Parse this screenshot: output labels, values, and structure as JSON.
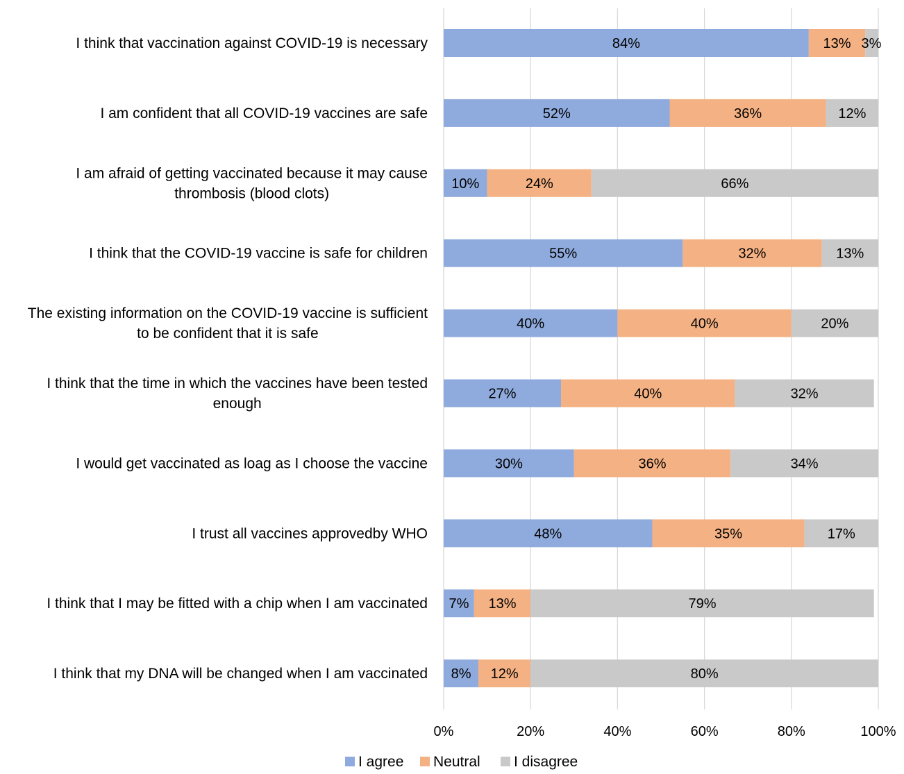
{
  "chart_data": {
    "type": "bar",
    "orientation": "horizontal",
    "stacked": "percent",
    "categories": [
      [
        "I think that vaccination against COVID-19 is necessary"
      ],
      [
        "I am confident that all COVID-19 vaccines are safe"
      ],
      [
        "I am afraid of getting vaccinated because it may cause",
        "thrombosis (blood clots)"
      ],
      [
        "I think that the COVID-19 vaccine is safe for children"
      ],
      [
        "The existing information on the COVID-19 vaccine is sufficient",
        "to be confident that it is safe"
      ],
      [
        "I think that the time in which the vaccines have been tested",
        "enough"
      ],
      [
        "I would get vaccinated as loag as I choose the vaccine"
      ],
      [
        "I trust all vaccines approvedby WHO"
      ],
      [
        "I think that I may be fitted with a chip when I am vaccinated"
      ],
      [
        "I think that my DNA will be changed when I am vaccinated"
      ]
    ],
    "series": [
      {
        "name": "I agree",
        "color": "#8faadc",
        "values": [
          84,
          52,
          10,
          55,
          40,
          27,
          30,
          48,
          7,
          8
        ]
      },
      {
        "name": "Neutral",
        "color": "#f4b183",
        "values": [
          13,
          36,
          24,
          32,
          40,
          40,
          36,
          35,
          13,
          12
        ]
      },
      {
        "name": "I disagree",
        "color": "#c9c9c9",
        "values": [
          3,
          12,
          66,
          13,
          20,
          32,
          34,
          17,
          79,
          80
        ]
      }
    ],
    "data_labels": [
      [
        "84%",
        "13%",
        "3%"
      ],
      [
        "52%",
        "36%",
        "12%"
      ],
      [
        "10%",
        "24%",
        "66%"
      ],
      [
        "55%",
        "32%",
        "13%"
      ],
      [
        "40%",
        "40%",
        "20%"
      ],
      [
        "27%",
        "40%",
        "32%"
      ],
      [
        "30%",
        "36%",
        "34%"
      ],
      [
        "48%",
        "35%",
        "17%"
      ],
      [
        "7%",
        "13%",
        "79%"
      ],
      [
        "8%",
        "12%",
        "80%"
      ]
    ],
    "xticks": [
      "0%",
      "20%",
      "40%",
      "60%",
      "80%",
      "100%"
    ],
    "xlim": [
      0,
      100
    ],
    "grid": "vertical",
    "legend": "bottom",
    "title": "",
    "xlabel": "",
    "ylabel": ""
  }
}
